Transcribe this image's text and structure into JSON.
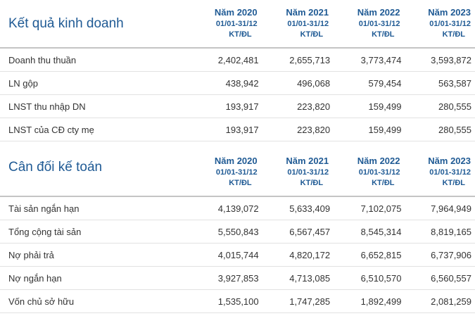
{
  "sections": [
    {
      "title": "Kết quả kinh doanh",
      "periods": [
        {
          "year": "Năm 2020",
          "range": "01/01-31/12",
          "unit": "KT/ĐL"
        },
        {
          "year": "Năm 2021",
          "range": "01/01-31/12",
          "unit": "KT/ĐL"
        },
        {
          "year": "Năm 2022",
          "range": "01/01-31/12",
          "unit": "KT/ĐL"
        },
        {
          "year": "Năm 2023",
          "range": "01/01-31/12",
          "unit": "KT/ĐL"
        }
      ],
      "rows": [
        {
          "label": "Doanh thu thuần",
          "values": [
            "2,402,481",
            "2,655,713",
            "3,773,474",
            "3,593,872"
          ]
        },
        {
          "label": "LN gộp",
          "values": [
            "438,942",
            "496,068",
            "579,454",
            "563,587"
          ]
        },
        {
          "label": "LNST thu nhập DN",
          "values": [
            "193,917",
            "223,820",
            "159,499",
            "280,555"
          ]
        },
        {
          "label": "LNST của CĐ cty mẹ",
          "values": [
            "193,917",
            "223,820",
            "159,499",
            "280,555"
          ]
        }
      ]
    },
    {
      "title": "Cân đối kế toán",
      "periods": [
        {
          "year": "Năm 2020",
          "range": "01/01-31/12",
          "unit": "KT/ĐL"
        },
        {
          "year": "Năm 2021",
          "range": "01/01-31/12",
          "unit": "KT/ĐL"
        },
        {
          "year": "Năm 2022",
          "range": "01/01-31/12",
          "unit": "KT/ĐL"
        },
        {
          "year": "Năm 2023",
          "range": "01/01-31/12",
          "unit": "KT/ĐL"
        }
      ],
      "rows": [
        {
          "label": "Tài sản ngắn hạn",
          "values": [
            "4,139,072",
            "5,633,409",
            "7,102,075",
            "7,964,949"
          ]
        },
        {
          "label": "Tổng cộng tài sản",
          "values": [
            "5,550,843",
            "6,567,457",
            "8,545,314",
            "8,819,165"
          ]
        },
        {
          "label": "Nợ phải trả",
          "values": [
            "4,015,744",
            "4,820,172",
            "6,652,815",
            "6,737,906"
          ]
        },
        {
          "label": "Nợ ngắn hạn",
          "values": [
            "3,927,853",
            "4,713,085",
            "6,510,570",
            "6,560,557"
          ]
        },
        {
          "label": "Vốn chủ sở hữu",
          "values": [
            "1,535,100",
            "1,747,285",
            "1,892,499",
            "2,081,259"
          ]
        }
      ]
    }
  ]
}
